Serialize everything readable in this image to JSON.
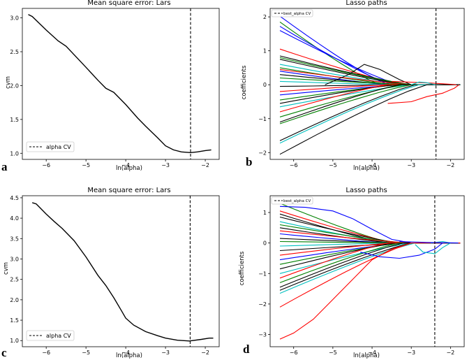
{
  "chart_data": [
    {
      "panel": "a",
      "type": "line",
      "title": "Mean square error: Lars",
      "xlabel": "ln(alpha)",
      "ylabel": "cvm",
      "xlim": [
        -6.6,
        -1.65
      ],
      "ylim": [
        0.91,
        3.14
      ],
      "xticks": [
        -6,
        -5,
        -4,
        -3,
        -2
      ],
      "yticks": [
        1.0,
        1.5,
        2.0,
        2.5,
        3.0
      ],
      "ytick_labels": [
        "1.0",
        "1.5",
        "2.0",
        "2.5",
        "3.0"
      ],
      "legend": "lower-left",
      "series": [
        {
          "name": "",
          "color": "#000000",
          "x": [
            -6.45,
            -6.35,
            -6.0,
            -5.7,
            -5.5,
            -5.0,
            -4.7,
            -4.5,
            -4.3,
            -4.0,
            -3.7,
            -3.5,
            -3.2,
            -3.0,
            -2.8,
            -2.6,
            -2.37,
            -2.2,
            -2.0,
            -1.85
          ],
          "y": [
            3.05,
            3.02,
            2.82,
            2.66,
            2.58,
            2.27,
            2.08,
            1.96,
            1.9,
            1.72,
            1.52,
            1.4,
            1.23,
            1.11,
            1.05,
            1.02,
            1.01,
            1.02,
            1.04,
            1.05
          ]
        },
        {
          "name": "alpha CV",
          "style": "dashed-vertical",
          "color": "#000000",
          "x_value": -2.37
        }
      ]
    },
    {
      "panel": "b",
      "type": "line",
      "title": "Lasso paths",
      "xlabel": "ln(alpha)",
      "ylabel": "coefficients",
      "xlim": [
        -6.6,
        -1.65
      ],
      "ylim": [
        -2.2,
        2.25
      ],
      "xticks": [
        -6,
        -5,
        -4,
        -3,
        -2
      ],
      "yticks": [
        -2,
        -1,
        0,
        1,
        2
      ],
      "ytick_labels": [
        "−2",
        "−1",
        "0",
        "1",
        "2"
      ],
      "legend": "top-left",
      "series": [
        {
          "color": "#0000ff",
          "start": 2.02,
          "end_x": -3.6
        },
        {
          "color": "#008000",
          "start": 1.85,
          "end_x": -3.8
        },
        {
          "color": "#0000ff",
          "start": 1.72,
          "end_x": -3.5
        },
        {
          "color": "#0000ff",
          "start": 1.6,
          "end_x": -3.3
        },
        {
          "color": "#ff0000",
          "start": 1.05,
          "end_x": -3.2
        },
        {
          "color": "#000000",
          "start": 0.85,
          "end_x": -3.0
        },
        {
          "color": "#008000",
          "start": 0.8,
          "end_x": -3.0
        },
        {
          "color": "#000000",
          "start": 0.75,
          "end_x": -3.1
        },
        {
          "color": "#00bfbf",
          "start": 0.6,
          "end_x": -3.2
        },
        {
          "color": "#008000",
          "start": 0.5,
          "end_x": -3.4
        },
        {
          "color": "#ff0000",
          "start": 0.45,
          "end_x": -3.0
        },
        {
          "color": "#0000ff",
          "start": 0.4,
          "end_x": -3.6
        },
        {
          "color": "#000000",
          "start": 0.3,
          "end_x": -3.3
        },
        {
          "color": "#008000",
          "start": 0.2,
          "end_x": -3.0
        },
        {
          "color": "#00bfbf",
          "start": 0.1,
          "end_x": -3.5
        },
        {
          "color": "#000000",
          "start": -0.05,
          "end_x": -3.0
        },
        {
          "color": "#ff0000",
          "start": -0.2,
          "end_x": -3.6
        },
        {
          "color": "#0000ff",
          "start": -0.3,
          "end_x": -3.2
        },
        {
          "color": "#008000",
          "start": -0.45,
          "end_x": -3.3
        },
        {
          "color": "#000000",
          "start": -0.55,
          "end_x": -3.4
        },
        {
          "color": "#00bfbf",
          "start": -0.65,
          "end_x": -3.0
        },
        {
          "color": "#ff0000",
          "start": -0.8,
          "end_x": -3.6
        },
        {
          "color": "#008000",
          "start": -0.95,
          "end_x": -3.2
        },
        {
          "color": "#000000",
          "start": -1.1,
          "end_x": -3.3
        },
        {
          "color": "#008000",
          "start": -1.15,
          "end_x": -3.0
        },
        {
          "color": "#000000",
          "start": -1.65,
          "end_x": -2.9
        },
        {
          "color": "#00bfbf",
          "start": -1.72,
          "end_x": -2.8
        },
        {
          "color": "#000000",
          "start": -2.05,
          "end_x": -2.6
        },
        {
          "color": "#000000",
          "path": [
            [
              -5.2,
              0.0
            ],
            [
              -4.6,
              0.3
            ],
            [
              -4.2,
              0.6
            ],
            [
              -3.8,
              0.45
            ],
            [
              -3.3,
              0.15
            ],
            [
              -3.0,
              0.0
            ]
          ]
        },
        {
          "color": "#ff0000",
          "path": [
            [
              -3.6,
              -0.55
            ],
            [
              -3.0,
              -0.5
            ],
            [
              -2.6,
              -0.35
            ],
            [
              -2.2,
              -0.25
            ],
            [
              -1.9,
              -0.1
            ],
            [
              -1.78,
              0.0
            ]
          ]
        },
        {
          "color": "#ff0000",
          "path": [
            [
              -3.5,
              0.1
            ],
            [
              -2.5,
              0.05
            ],
            [
              -2.1,
              0.02
            ],
            [
              -1.85,
              0.0
            ]
          ]
        },
        {
          "color": "#00bfbf",
          "path": [
            [
              -3.0,
              0.0
            ],
            [
              -2.8,
              0.08
            ],
            [
              -2.6,
              0.06
            ],
            [
              -2.4,
              0.0
            ]
          ]
        },
        {
          "name": "best_alpha CV",
          "style": "dashed-vertical",
          "color": "#000000",
          "x_value": -2.37
        }
      ]
    },
    {
      "panel": "c",
      "type": "line",
      "title": "Mean square error: Lars",
      "xlabel": "ln(alpha)",
      "ylabel": "cvm",
      "xlim": [
        -6.6,
        -1.65
      ],
      "ylim": [
        0.85,
        4.55
      ],
      "xticks": [
        -6,
        -5,
        -4,
        -3,
        -2
      ],
      "yticks": [
        1.0,
        1.5,
        2.0,
        2.5,
        3.0,
        3.5,
        4.0,
        4.5
      ],
      "ytick_labels": [
        "1.0",
        "1.5",
        "2.0",
        "2.5",
        "3.0",
        "3.5",
        "4.0",
        "4.5"
      ],
      "legend": "lower-left",
      "series": [
        {
          "name": "",
          "color": "#000000",
          "x": [
            -6.35,
            -6.25,
            -6.0,
            -5.8,
            -5.6,
            -5.3,
            -5.0,
            -4.7,
            -4.5,
            -4.3,
            -4.1,
            -4.0,
            -3.8,
            -3.5,
            -3.2,
            -3.0,
            -2.7,
            -2.4,
            -2.1,
            -1.9,
            -1.8
          ],
          "y": [
            4.38,
            4.35,
            4.1,
            3.92,
            3.75,
            3.45,
            3.05,
            2.6,
            2.35,
            2.05,
            1.72,
            1.55,
            1.38,
            1.22,
            1.12,
            1.06,
            1.01,
            0.99,
            1.03,
            1.06,
            1.06
          ]
        },
        {
          "name": "alpha CV",
          "style": "dashed-vertical",
          "color": "#000000",
          "x_value": -2.38
        }
      ]
    },
    {
      "panel": "d",
      "type": "line",
      "title": "Lasso paths",
      "xlabel": "ln(alpha)",
      "ylabel": "coefficients",
      "xlim": [
        -6.6,
        -1.65
      ],
      "ylim": [
        -3.4,
        1.55
      ],
      "xticks": [
        -6,
        -5,
        -4,
        -3,
        -2
      ],
      "yticks": [
        -3,
        -2,
        -1,
        0,
        1
      ],
      "ytick_labels": [
        "−3",
        "−2",
        "−1",
        "0",
        "1"
      ],
      "legend": "top-left",
      "series": [
        {
          "color": "#008000",
          "start": 1.3,
          "end_x": -3.5
        },
        {
          "color": "#0000ff",
          "path": [
            [
              -6.35,
              1.2
            ],
            [
              -5.7,
              1.17
            ],
            [
              -5.0,
              1.05
            ],
            [
              -4.5,
              0.8
            ],
            [
              -4.0,
              0.45
            ],
            [
              -3.5,
              0.12
            ],
            [
              -3.0,
              0.0
            ]
          ]
        },
        {
          "color": "#ff0000",
          "start": 1.05,
          "end_x": -3.4
        },
        {
          "color": "#000000",
          "start": 0.95,
          "end_x": -3.6
        },
        {
          "color": "#000000",
          "start": 0.85,
          "end_x": -3.3
        },
        {
          "color": "#00bfbf",
          "start": 0.7,
          "end_x": -3.5
        },
        {
          "color": "#008000",
          "start": 0.6,
          "end_x": -3.2
        },
        {
          "color": "#000000",
          "start": 0.5,
          "end_x": -3.5
        },
        {
          "color": "#ff0000",
          "start": 0.4,
          "end_x": -3.0
        },
        {
          "color": "#0000ff",
          "start": 0.3,
          "end_x": -3.6
        },
        {
          "color": "#000000",
          "start": 0.15,
          "end_x": -3.3
        },
        {
          "color": "#008000",
          "start": 0.05,
          "end_x": -3.0
        },
        {
          "color": "#00bfbf",
          "start": -0.1,
          "end_x": -3.4
        },
        {
          "color": "#000000",
          "start": -0.25,
          "end_x": -3.0
        },
        {
          "color": "#ff0000",
          "start": -0.4,
          "end_x": -3.5
        },
        {
          "color": "#0000ff",
          "start": -0.55,
          "end_x": -3.2
        },
        {
          "color": "#008000",
          "start": -0.7,
          "end_x": -3.3
        },
        {
          "color": "#000000",
          "start": -0.85,
          "end_x": -3.4
        },
        {
          "color": "#00bfbf",
          "start": -1.0,
          "end_x": -3.0
        },
        {
          "color": "#ff0000",
          "start": -1.15,
          "end_x": -3.6
        },
        {
          "color": "#008000",
          "start": -1.3,
          "end_x": -3.3
        },
        {
          "color": "#000000",
          "start": -1.45,
          "end_x": -3.2
        },
        {
          "color": "#000000",
          "start": -1.55,
          "end_x": -3.0
        },
        {
          "color": "#00bfbf",
          "start": -1.65,
          "end_x": -2.9
        },
        {
          "color": "#ff0000",
          "start": -2.1,
          "end_x": -3.0
        },
        {
          "color": "#ff0000",
          "path": [
            [
              -6.35,
              -3.15
            ],
            [
              -6.0,
              -2.95
            ],
            [
              -5.5,
              -2.5
            ],
            [
              -5.0,
              -1.85
            ],
            [
              -4.5,
              -1.2
            ],
            [
              -4.0,
              -0.55
            ],
            [
              -3.5,
              -0.2
            ],
            [
              -3.0,
              0.0
            ]
          ]
        },
        {
          "color": "#0000ff",
          "path": [
            [
              -4.3,
              -0.3
            ],
            [
              -3.8,
              -0.45
            ],
            [
              -3.3,
              -0.5
            ],
            [
              -2.8,
              -0.4
            ],
            [
              -2.4,
              -0.2
            ],
            [
              -2.2,
              0.0
            ]
          ]
        },
        {
          "color": "#00bfbf",
          "path": [
            [
              -2.9,
              -0.05
            ],
            [
              -2.7,
              -0.3
            ],
            [
              -2.4,
              -0.35
            ],
            [
              -2.2,
              -0.15
            ],
            [
              -2.0,
              0.0
            ]
          ]
        },
        {
          "color": "#00bfbf",
          "path": [
            [
              -2.5,
              0.0
            ],
            [
              -2.2,
              0.05
            ],
            [
              -2.0,
              0.0
            ]
          ]
        },
        {
          "color": "#0000ff",
          "path": [
            [
              -3.3,
              0.05
            ],
            [
              -2.6,
              0.02
            ],
            [
              -1.8,
              0.0
            ]
          ]
        },
        {
          "name": "best_alpha CV",
          "style": "dashed-vertical",
          "color": "#000000",
          "x_value": -2.4
        }
      ]
    }
  ]
}
